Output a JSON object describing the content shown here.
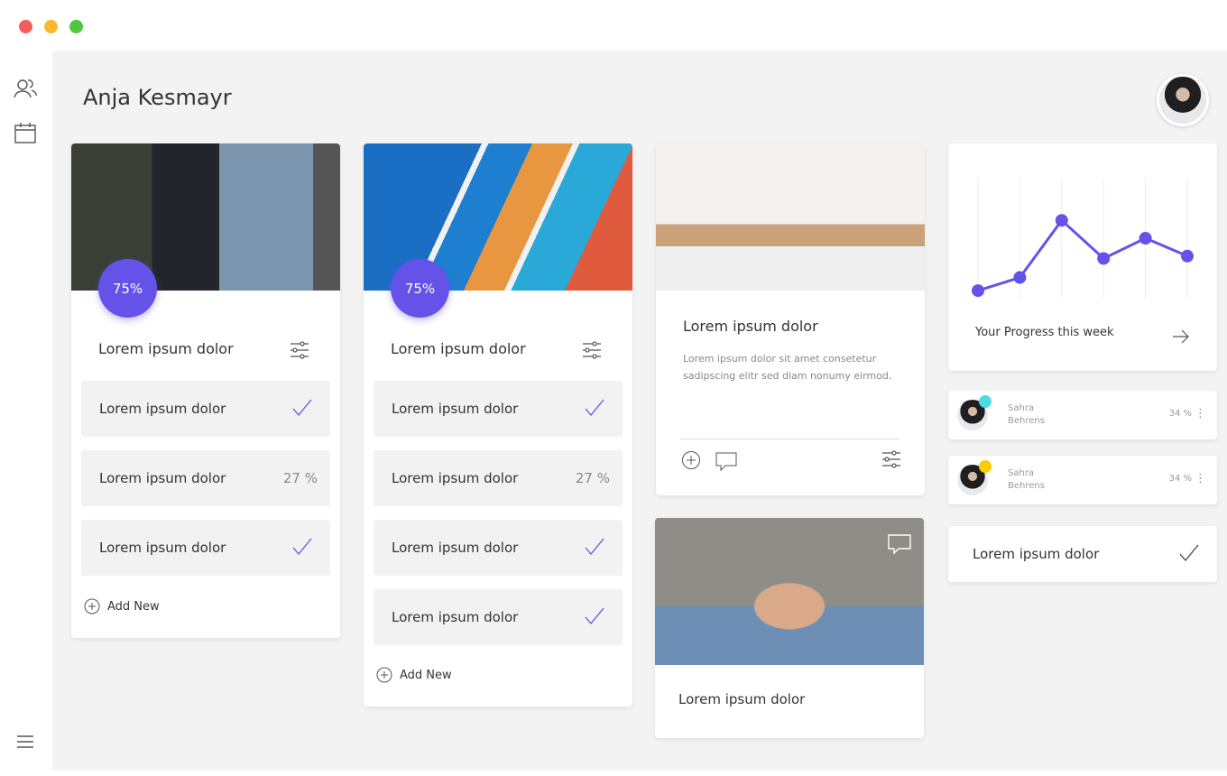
{
  "window": {
    "controls": [
      {
        "name": "close",
        "color": "#f45d5a"
      },
      {
        "name": "minimize",
        "color": "#f8b931"
      },
      {
        "name": "maximize",
        "color": "#4ec840"
      }
    ]
  },
  "sidebar": {
    "items": [
      {
        "icon": "users-icon"
      },
      {
        "icon": "calendar-icon"
      }
    ],
    "menu_icon": "hamburger-menu-icon"
  },
  "header": {
    "title": "Anja Kesmayr"
  },
  "accent": "#6452e9",
  "cards": [
    {
      "badge": "75%",
      "title": "Lorem ipsum dolor",
      "rows": [
        {
          "label": "Lorem ipsum dolor",
          "status": "check"
        },
        {
          "label": "Lorem ipsum dolor",
          "value": "27 %"
        },
        {
          "label": "Lorem ipsum dolor",
          "status": "check"
        }
      ],
      "add_label": "Add New"
    },
    {
      "badge": "75%",
      "title": "Lorem ipsum dolor",
      "rows": [
        {
          "label": "Lorem ipsum dolor",
          "status": "check"
        },
        {
          "label": "Lorem ipsum dolor",
          "value": "27 %"
        },
        {
          "label": "Lorem ipsum dolor",
          "status": "check"
        },
        {
          "label": "Lorem ipsum dolor",
          "status": "check"
        }
      ],
      "add_label": "Add New"
    },
    {
      "title": "Lorem ipsum dolor",
      "text": "Lorem ipsum dolor sit amet consetetur sadipscing elitr sed diam nonumy eirmod."
    },
    {
      "title": "Lorem ipsum dolor"
    }
  ],
  "progress": {
    "label": "Your Progress this week"
  },
  "chart_data": {
    "type": "line",
    "values": [
      6,
      17,
      65,
      33,
      50,
      35
    ],
    "ylim": [
      0,
      100
    ],
    "grid": "vertical",
    "color": "#6452e9"
  },
  "people": [
    {
      "first": "Sahra",
      "last": "Behrens",
      "percent": "34 %",
      "status_color": "#4fdcdf"
    },
    {
      "first": "Sahra",
      "last": "Behrens",
      "percent": "34 %",
      "status_color": "#ffcc00"
    }
  ],
  "task": {
    "label": "Lorem ipsum dolor",
    "status": "check"
  }
}
